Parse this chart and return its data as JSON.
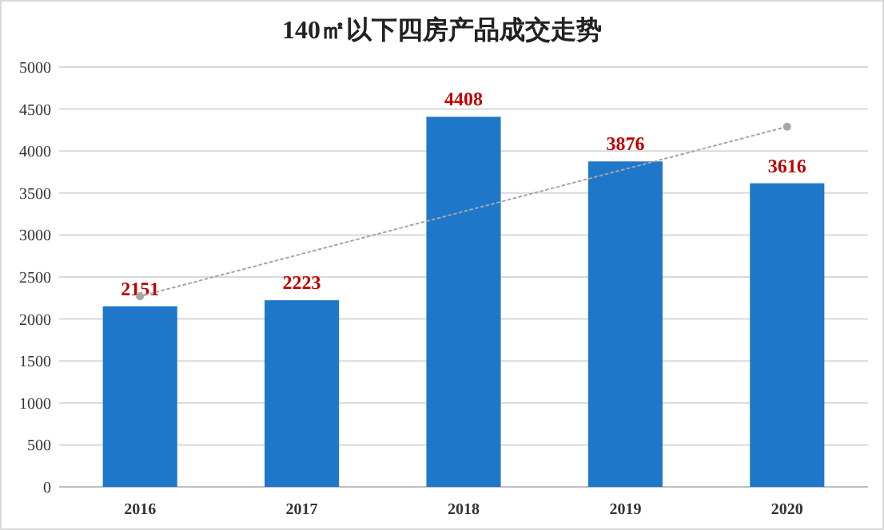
{
  "chart_data": {
    "type": "bar",
    "title": "140㎡以下四房产品成交走势",
    "categories": [
      "2016",
      "2017",
      "2018",
      "2019",
      "2020"
    ],
    "ylim": [
      0,
      5000
    ],
    "yticks": [
      0,
      500,
      1000,
      1500,
      2000,
      2500,
      3000,
      3500,
      4000,
      4500,
      5000
    ],
    "grid": "y",
    "series": [
      {
        "color": "#1f77c9",
        "values": [
          2151,
          2223,
          4408,
          3876,
          3616
        ],
        "value_labels": [
          "2151",
          "2223",
          "4408",
          "3876",
          "3616"
        ]
      },
      {
        "type": "line",
        "values": [
          2270,
          null,
          null,
          null,
          4290
        ],
        "color": "#a6a6a6",
        "line_style": "dotted",
        "marker": "circle"
      }
    ]
  }
}
